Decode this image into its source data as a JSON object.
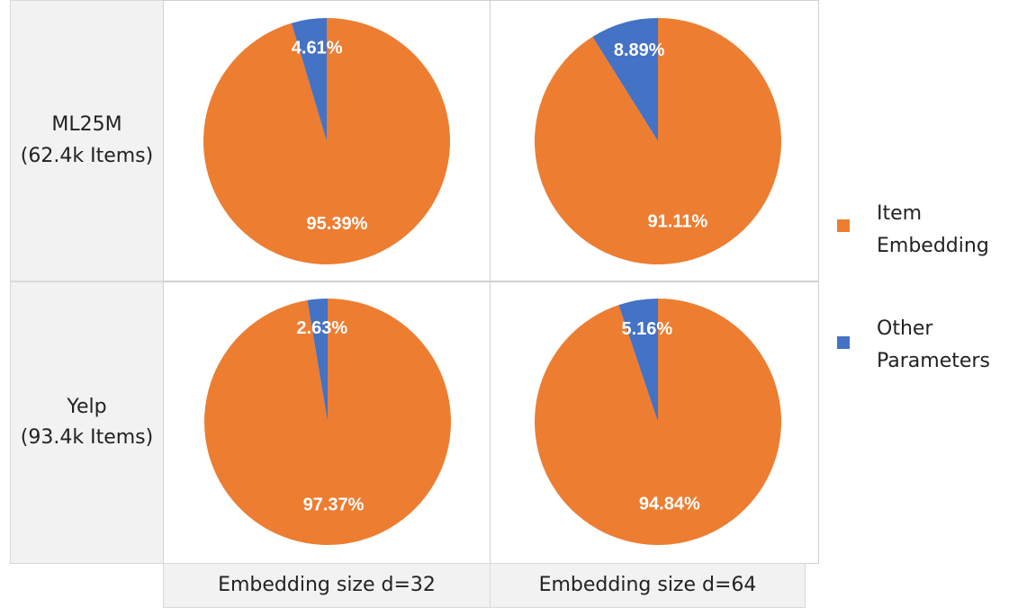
{
  "rows": [
    {
      "line1": "ML25M",
      "line2": "(62.4k Items)"
    },
    {
      "line1": "Yelp",
      "line2": "(93.4k Items)"
    }
  ],
  "columns": [
    {
      "label": "Embedding size d=32"
    },
    {
      "label": "Embedding size d=64"
    }
  ],
  "legend": {
    "item_embedding": {
      "line1": "Item",
      "line2": "Embedding",
      "color": "#ed7d31"
    },
    "other_parameters": {
      "line1": "Other",
      "line2": "Parameters",
      "color": "#4472c4"
    }
  },
  "chart_data": [
    {
      "type": "pie",
      "row": "ML25M (62.4k Items)",
      "column": "Embedding size d=32",
      "slices": [
        {
          "name": "Item Embedding",
          "value": 95.39,
          "label": "95.39%"
        },
        {
          "name": "Other Parameters",
          "value": 4.61,
          "label": "4.61%"
        }
      ]
    },
    {
      "type": "pie",
      "row": "ML25M (62.4k Items)",
      "column": "Embedding size d=64",
      "slices": [
        {
          "name": "Item Embedding",
          "value": 91.11,
          "label": "91.11%"
        },
        {
          "name": "Other Parameters",
          "value": 8.89,
          "label": "8.89%"
        }
      ]
    },
    {
      "type": "pie",
      "row": "Yelp (93.4k Items)",
      "column": "Embedding size d=32",
      "slices": [
        {
          "name": "Item Embedding",
          "value": 97.37,
          "label": "97.37%"
        },
        {
          "name": "Other Parameters",
          "value": 2.63,
          "label": "2.63%"
        }
      ]
    },
    {
      "type": "pie",
      "row": "Yelp (93.4k Items)",
      "column": "Embedding size d=64",
      "slices": [
        {
          "name": "Item Embedding",
          "value": 94.84,
          "label": "94.84%"
        },
        {
          "name": "Other Parameters",
          "value": 5.16,
          "label": "5.16%"
        }
      ]
    }
  ]
}
